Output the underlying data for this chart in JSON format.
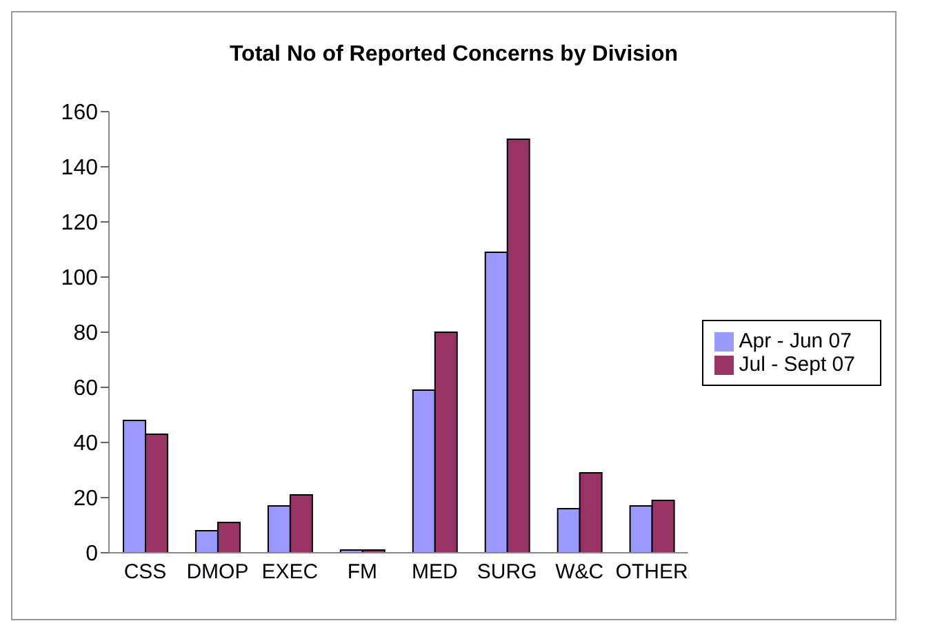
{
  "chart_data": {
    "type": "bar",
    "title": "Total No of Reported Concerns by Division",
    "categories": [
      "CSS",
      "DMOP",
      "EXEC",
      "FM",
      "MED",
      "SURG",
      "W&C",
      "OTHER"
    ],
    "series": [
      {
        "name": "Apr - Jun 07",
        "color": "#9999ff",
        "values": [
          48,
          8,
          17,
          1,
          59,
          109,
          16,
          17
        ]
      },
      {
        "name": "Jul - Sept 07",
        "color": "#993366",
        "values": [
          43,
          11,
          21,
          1,
          80,
          150,
          29,
          19
        ]
      }
    ],
    "ylim": [
      0,
      160
    ],
    "yticks": [
      0,
      20,
      40,
      60,
      80,
      100,
      120,
      140,
      160
    ],
    "grid": false,
    "legend": "right"
  }
}
